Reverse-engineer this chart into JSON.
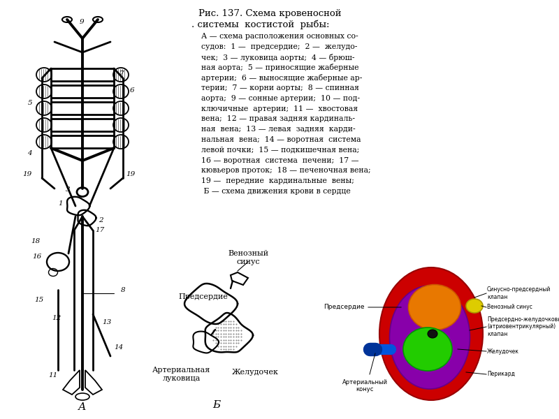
{
  "bg_color": "#ffffff",
  "title_line1": "Рис. 137. Схема кровеносной",
  "title_line2": ". системы  костистой  рыбы:",
  "description_lines": [
    "А — схема расположения основных со-",
    "судов:  1 —  предсердие;  2 —  желудо-",
    "чек;  3 — луковица аорты;  4 — брюш-",
    "ная аорта;  5 — приносящие жаберные",
    "артерии;  6 — выносящие жаберные ар-",
    "терии;  7 — корни аорты;  8 — спинная",
    "аорта;  9 — сонные артерии;  10 — под-",
    "ключичные  артерии;  11 —  хвостовая",
    "вена;  12 — правая задняя кардиналь-",
    "ная  вена;  13 — левая  задняя  карди-",
    "нальная  вена;  14 — воротная  система",
    "левой почки;  15 — подкишечная вена;",
    "16 — воротная  система  печени;  17 —",
    "кювьеров проток;  18 — печеночная вена;",
    "19 —  передние  кардинальные  вены;",
    " Б — схема движения крови в сердце"
  ],
  "label_A": "А",
  "label_B": "Б",
  "heart_b_labels": {
    "venous_sinus": "Венозный\nсинус",
    "atrium": "Предсердие",
    "arterial_bulb": "Артериальная\nлуковица",
    "ventricle": "Желудочек"
  },
  "colored_heart_labels": {
    "atrium": "Предсердие",
    "sinus_atrial_valve": "Синусно-предсердный\nклапан",
    "venous_sinus": "Венозный синус",
    "av_valve": "Предсердно-желудочковый\n(атриовентрикулярный)\nклапан",
    "ventricle": "Желудочек",
    "pericardium": "Перикард",
    "arterial_cone": "Артериальный\nконус"
  },
  "pericardium_color": "#cc0000",
  "purple_color": "#8800aa",
  "atrium_color": "#e87800",
  "ventricle_color": "#22cc00",
  "venous_sinus_color": "#ddcc00",
  "arterial_cone_color": "#0055dd"
}
